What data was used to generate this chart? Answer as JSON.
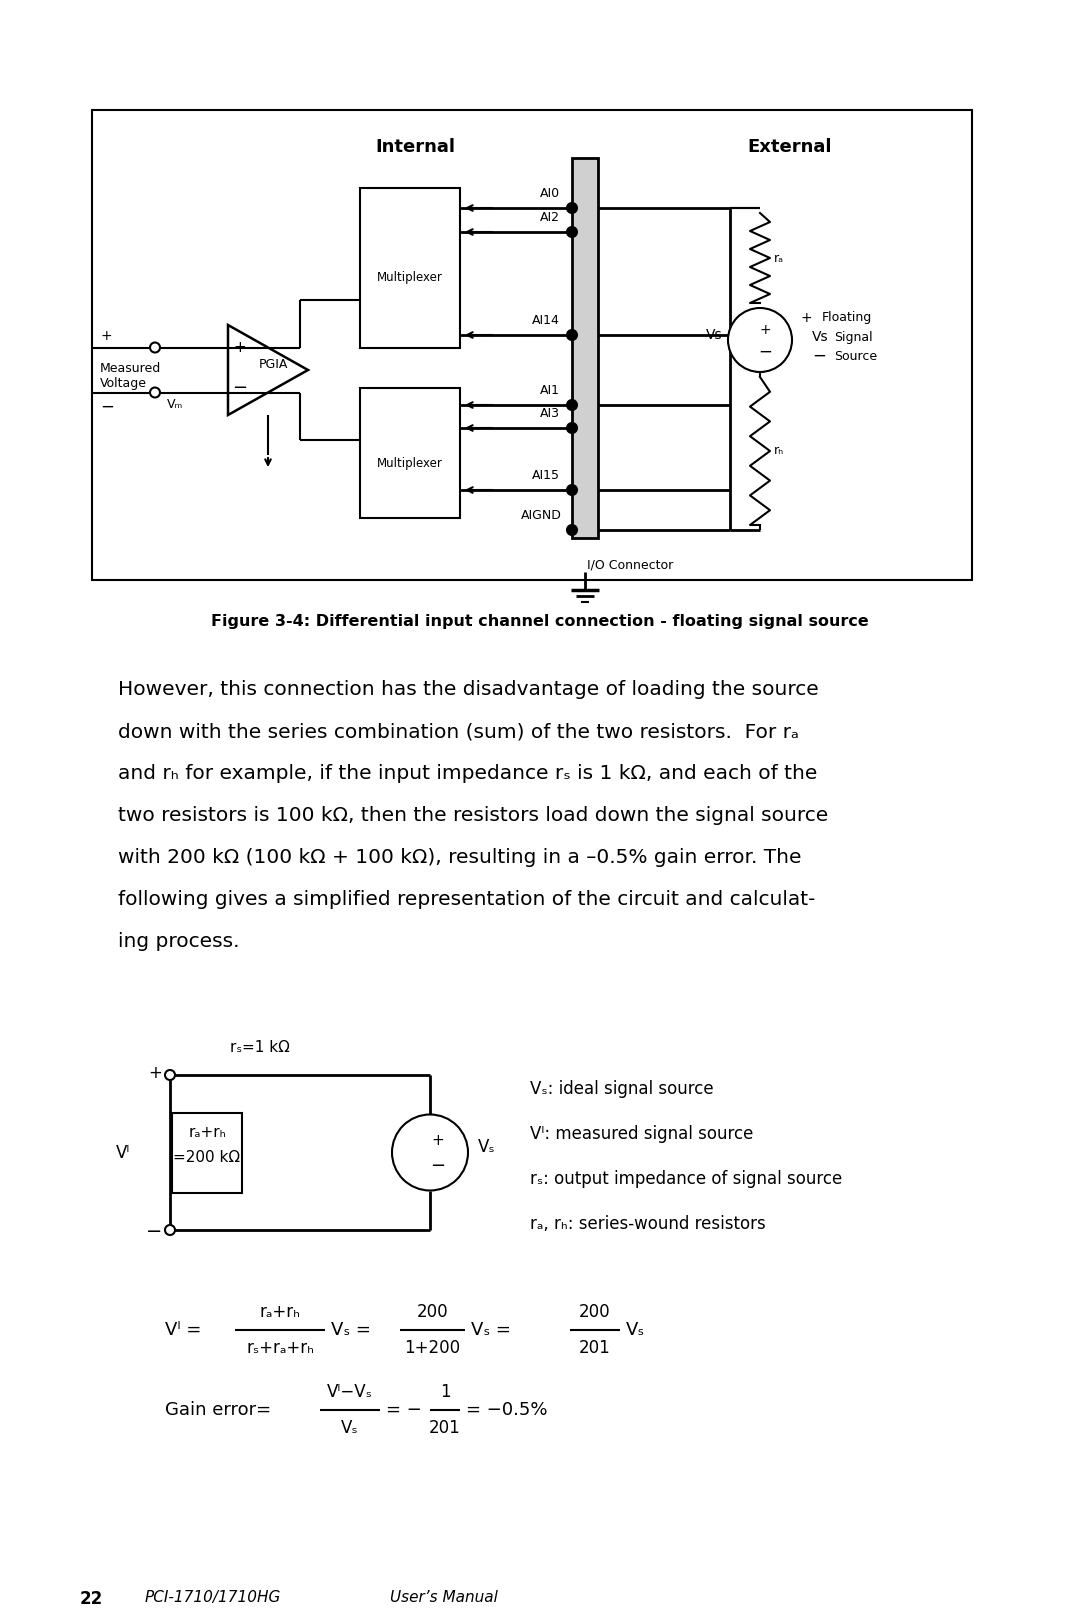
{
  "bg_color": "#ffffff",
  "figure_caption": "Figure 3-4: Differential input channel connection - floating signal source",
  "footer_page": "22",
  "footer_manual": "PCI-1710/1710HG   User’s Manual"
}
